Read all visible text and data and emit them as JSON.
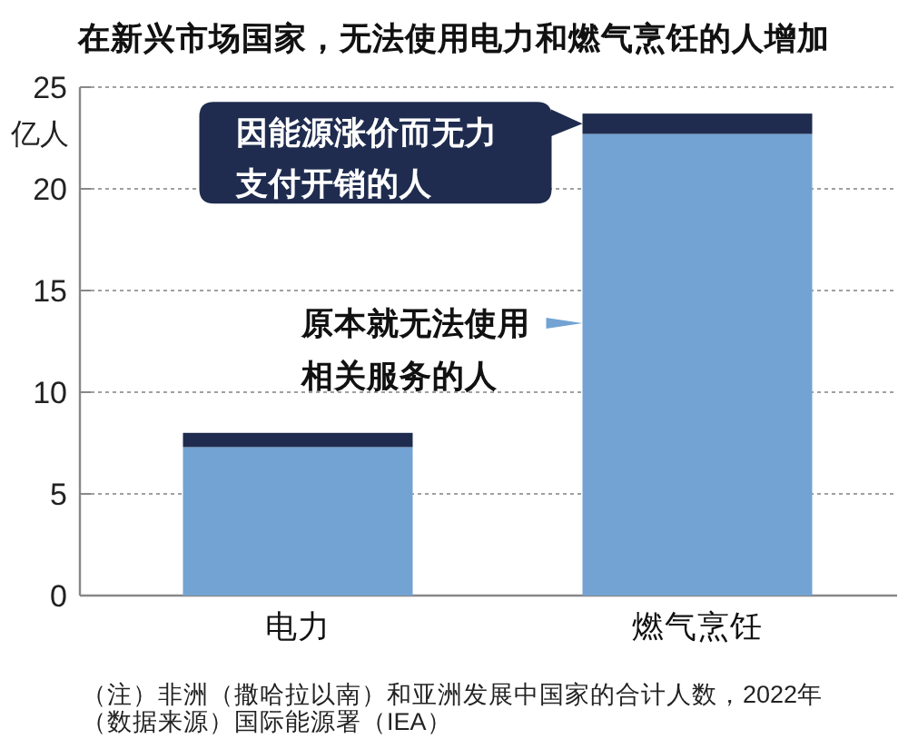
{
  "chart_data": {
    "type": "bar",
    "stacked": true,
    "title": "在新兴市场国家，无法使用电力和燃气烹饪的人增加",
    "ylabel": "亿人",
    "categories": [
      "电力",
      "燃气烹饪"
    ],
    "series": [
      {
        "name": "原本就无法使用相关服务的人",
        "color": "#72a3d3",
        "values": [
          7.3,
          22.7
        ]
      },
      {
        "name": "因能源涨价而无力支付开销的人",
        "color": "#1f2c4f",
        "values": [
          0.7,
          1.0
        ]
      }
    ],
    "ylim": [
      0,
      25
    ],
    "yticks": [
      0,
      5,
      10,
      15,
      20,
      25
    ],
    "grid": "y",
    "legend": "top left",
    "annotations": [
      "（注）非洲（撒哈拉以南）和亚洲发展中国家的合计人数，2022年",
      "（数据来源）国际能源署（IEA）"
    ]
  }
}
